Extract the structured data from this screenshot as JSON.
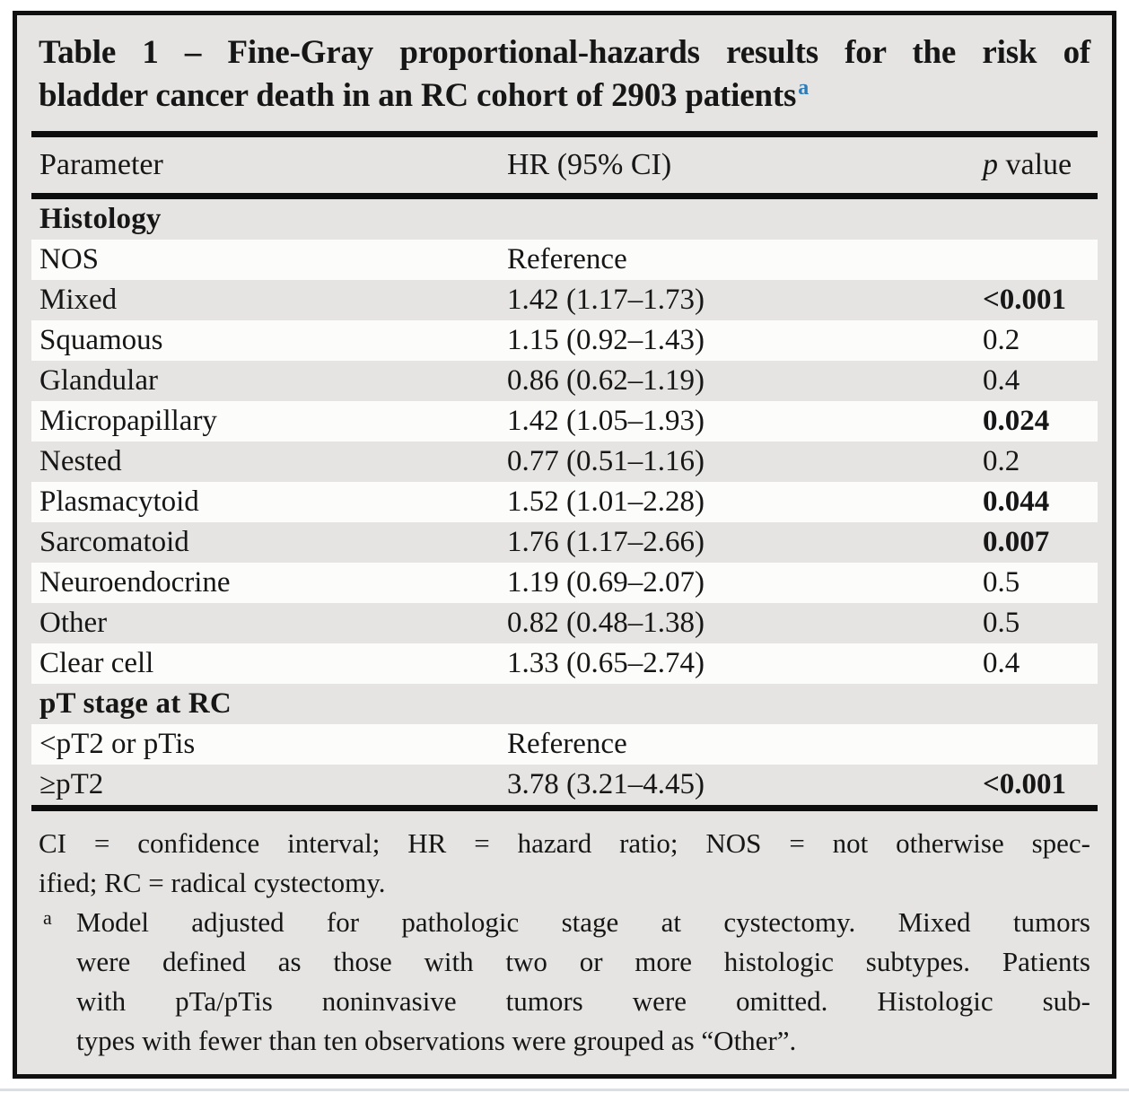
{
  "colors": {
    "frame_border": "#101010",
    "table_bg": "#e5e4e2",
    "stripe_white": "#fcfcfb",
    "text": "#161616",
    "marker_blue": "#2d7cb8",
    "rule": "#0d0d0d"
  },
  "title": {
    "line1": "Table 1 – Fine-Gray proportional-hazards results for the risk of",
    "line2": "bladder cancer death in an RC cohort of 2903 patients",
    "marker": "a"
  },
  "header": {
    "parameter": "Parameter",
    "hr": "HR (95% CI)",
    "p_italic": "p",
    "p_rest": "value"
  },
  "table": {
    "rows": [
      {
        "type": "section",
        "parameter": "Histology",
        "hr": "",
        "p": ""
      },
      {
        "type": "data",
        "parameter": "NOS",
        "hr": "Reference",
        "p": ""
      },
      {
        "type": "data",
        "parameter": "Mixed",
        "hr": "1.42 (1.17–1.73)",
        "p": "<0.001",
        "p_bold": true
      },
      {
        "type": "data",
        "parameter": "Squamous",
        "hr": "1.15 (0.92–1.43)",
        "p": "0.2"
      },
      {
        "type": "data",
        "parameter": "Glandular",
        "hr": "0.86 (0.62–1.19)",
        "p": "0.4"
      },
      {
        "type": "data",
        "parameter": "Micropapillary",
        "hr": "1.42 (1.05–1.93)",
        "p": "0.024",
        "p_bold": true
      },
      {
        "type": "data",
        "parameter": "Nested",
        "hr": "0.77 (0.51–1.16)",
        "p": "0.2"
      },
      {
        "type": "data",
        "parameter": "Plasmacytoid",
        "hr": "1.52 (1.01–2.28)",
        "p": "0.044",
        "p_bold": true
      },
      {
        "type": "data",
        "parameter": "Sarcomatoid",
        "hr": "1.76 (1.17–2.66)",
        "p": "0.007",
        "p_bold": true
      },
      {
        "type": "data",
        "parameter": "Neuroendocrine",
        "hr": "1.19 (0.69–2.07)",
        "p": "0.5"
      },
      {
        "type": "data",
        "parameter": "Other",
        "hr": "0.82 (0.48–1.38)",
        "p": "0.5"
      },
      {
        "type": "data",
        "parameter": "Clear cell",
        "hr": "1.33 (0.65–2.74)",
        "p": "0.4"
      },
      {
        "type": "section",
        "parameter": "pT stage at RC",
        "hr": "",
        "p": ""
      },
      {
        "type": "data",
        "parameter": "<pT2 or pTis",
        "hr": "Reference",
        "p": ""
      },
      {
        "type": "data",
        "parameter": "≥pT2",
        "hr": "3.78 (3.21–4.45)",
        "p": "<0.001",
        "p_bold": true
      }
    ]
  },
  "footnotes": {
    "abbrev_lines": [
      "CI = confidence interval; HR = hazard ratio; NOS = not otherwise spec-",
      "ified; RC = radical cystectomy."
    ],
    "note_a": {
      "marker": "a",
      "lines": [
        "Model adjusted for pathologic stage at cystectomy. Mixed tumors",
        "were defined as those with two or more histologic subtypes. Patients",
        "with pTa/pTis noninvasive tumors were omitted. Histologic sub-",
        "types with fewer than ten observations were grouped as “Other”."
      ]
    }
  }
}
